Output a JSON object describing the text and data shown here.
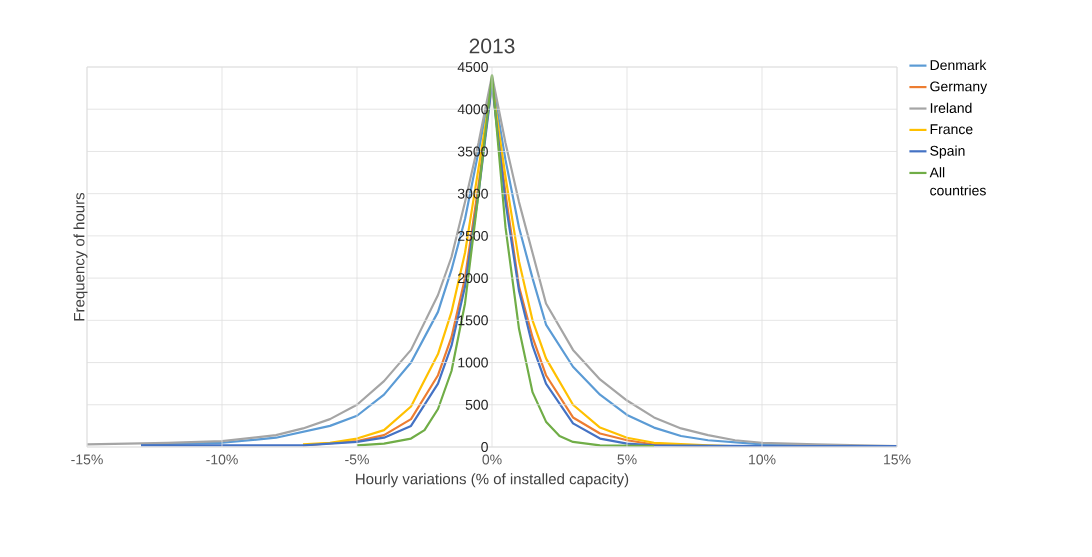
{
  "chart_data": {
    "type": "line",
    "title": "2013",
    "xlabel": "Hourly variations (% of installed capacity)",
    "ylabel": "Frequency of hours",
    "xlim": [
      -15,
      15
    ],
    "ylim": [
      0,
      4500
    ],
    "xticks": [
      {
        "value": -15,
        "label": "-15%"
      },
      {
        "value": -10,
        "label": "-10%"
      },
      {
        "value": -5,
        "label": "-5%"
      },
      {
        "value": 0,
        "label": "0%"
      },
      {
        "value": 5,
        "label": "5%"
      },
      {
        "value": 10,
        "label": "10%"
      },
      {
        "value": 15,
        "label": "15%"
      }
    ],
    "yticks": [
      0,
      500,
      1000,
      1500,
      2000,
      2500,
      3000,
      3500,
      4000,
      4500
    ],
    "grid": true,
    "legend": "right",
    "marker": "none",
    "line_style": "solid",
    "series": [
      {
        "name": "Denmark",
        "color": "#5b9bd5",
        "x": [
          -13,
          -10,
          -8,
          -6,
          -5,
          -4,
          -3,
          -2,
          -1.5,
          -1,
          -0.5,
          0,
          0.5,
          1,
          1.5,
          2,
          3,
          4,
          5,
          6,
          7,
          8,
          10,
          13,
          15
        ],
        "values": [
          30,
          50,
          110,
          250,
          370,
          620,
          1000,
          1600,
          2100,
          2700,
          3500,
          4350,
          3400,
          2600,
          2000,
          1450,
          950,
          620,
          380,
          230,
          130,
          80,
          30,
          10,
          0
        ]
      },
      {
        "name": "Germany",
        "color": "#ed7d31",
        "x": [
          -7,
          -5,
          -4,
          -3,
          -2,
          -1.5,
          -1,
          -0.5,
          0,
          0.5,
          1,
          1.5,
          2,
          3,
          4,
          5,
          6,
          8
        ],
        "values": [
          20,
          70,
          140,
          330,
          850,
          1300,
          2000,
          3100,
          4300,
          3000,
          1900,
          1300,
          850,
          350,
          160,
          80,
          30,
          10
        ]
      },
      {
        "name": "Ireland",
        "color": "#a5a5a5",
        "x": [
          -15,
          -12,
          -10,
          -8,
          -7,
          -6,
          -5,
          -4,
          -3,
          -2,
          -1.5,
          -1,
          -0.5,
          0,
          0.5,
          1,
          1.5,
          2,
          3,
          4,
          5,
          6,
          7,
          8,
          9,
          10,
          12,
          15
        ],
        "values": [
          30,
          50,
          70,
          140,
          220,
          330,
          500,
          780,
          1150,
          1800,
          2250,
          2900,
          3600,
          4400,
          3600,
          2900,
          2300,
          1700,
          1150,
          800,
          550,
          350,
          220,
          140,
          80,
          50,
          30,
          10
        ]
      },
      {
        "name": "France",
        "color": "#ffc000",
        "x": [
          -7,
          -6,
          -5,
          -4,
          -3,
          -2,
          -1.5,
          -1,
          -0.5,
          0,
          0.5,
          1,
          1.5,
          2,
          3,
          4,
          5,
          6,
          8,
          10
        ],
        "values": [
          30,
          50,
          100,
          200,
          480,
          1100,
          1600,
          2300,
          3300,
          4300,
          3200,
          2200,
          1500,
          1050,
          500,
          230,
          110,
          50,
          20,
          0
        ]
      },
      {
        "name": "Spain",
        "color": "#4472c4",
        "x": [
          -13,
          -10,
          -7,
          -5,
          -4,
          -3,
          -2,
          -1.5,
          -1,
          -0.5,
          0,
          0.5,
          1,
          1.5,
          2,
          3,
          4,
          5,
          6,
          10,
          15
        ],
        "values": [
          20,
          20,
          20,
          60,
          110,
          250,
          750,
          1200,
          1900,
          3000,
          4300,
          2900,
          1850,
          1200,
          750,
          280,
          100,
          40,
          20,
          10,
          10
        ]
      },
      {
        "name": "All countries",
        "color": "#70ad47",
        "x": [
          -5,
          -4,
          -3,
          -2.5,
          -2,
          -1.5,
          -1,
          -0.5,
          0,
          0.5,
          1,
          1.5,
          2,
          2.5,
          3,
          4,
          6
        ],
        "values": [
          20,
          40,
          100,
          200,
          450,
          900,
          1700,
          3000,
          4400,
          2600,
          1400,
          650,
          300,
          130,
          60,
          20,
          10
        ]
      }
    ]
  }
}
